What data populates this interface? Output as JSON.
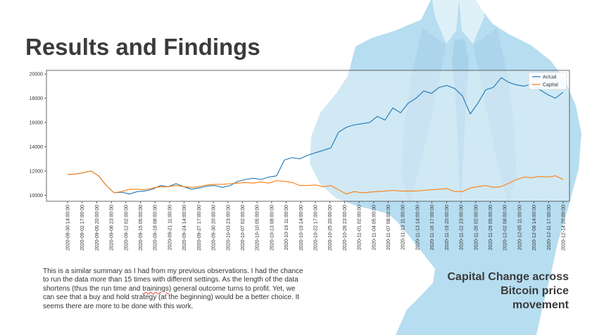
{
  "slide": {
    "title": "Results and Findings",
    "body_text": {
      "before": "This is a similar summary as I had from my previous observations. I had the chance to run the data more than 15 times with different settings. As the length of the data shortens (thus the run time and ",
      "marked_word": "trainings",
      "after": ") general outcome turns to profit. Yet, we can see that a buy and hold strategy (at the beginning) would be a better choice. It seems there are more to be done with this work."
    },
    "caption_lines": [
      "Capital Change across",
      "Bitcoin price",
      "movement"
    ]
  },
  "colors": {
    "actual": "#1f77b4",
    "capital": "#ff7f0e",
    "silhouette": "#b7ddf0",
    "silhouette_dark": "#a6d2ea",
    "title": "#3b3b3b"
  },
  "chart_data": {
    "type": "line",
    "title": "",
    "xlabel": "",
    "ylabel": "",
    "ylim": [
      9500,
      20300
    ],
    "y_ticks": [
      10000,
      12000,
      14000,
      16000,
      18000,
      20000
    ],
    "legend_position": "top-right",
    "grid": false,
    "x_tick_labels": [
      "2020-08-30 14:00:00",
      "2020-09-02 17:00:00",
      "2020-09-05 20:00:00",
      "2020-09-08 23:00:00",
      "2020-09-12 02:00:00",
      "2020-09-15 05:00:00",
      "2020-09-18 08:00:00",
      "2020-09-21 11:00:00",
      "2020-09-24 14:00:00",
      "2020-09-27 17:00:00",
      "2020-09-30 20:00:00",
      "2020-10-03 23:00:00",
      "2020-10-07 02:00:00",
      "2020-10-10 05:00:00",
      "2020-10-13 08:00:00",
      "2020-10-16 11:00:00",
      "2020-10-19 14:00:00",
      "2020-10-22 17:00:00",
      "2020-10-25 20:00:00",
      "2020-10-28 23:00:00",
      "2020-11-01 02:00:00",
      "2020-11-04 05:00:00",
      "2020-11-07 08:00:00",
      "2020-11-10 11:00:00",
      "2020-11-13 14:00:00",
      "2020-11-16 17:00:00",
      "2020-11-19 20:00:00",
      "2020-11-22 23:00:00",
      "2020-11-26 02:00:00",
      "2020-11-29 05:00:00",
      "2020-12-02 08:00:00",
      "2020-12-05 11:00:00",
      "2020-12-08 14:00:00",
      "2020-12-11 17:00:00",
      "2020-12-14 20:00:00"
    ],
    "series": [
      {
        "name": "Actual",
        "color": "#1f77b4",
        "values": [
          11700,
          11750,
          11850,
          12000,
          11600,
          10800,
          10200,
          10250,
          10100,
          10300,
          10350,
          10500,
          10800,
          10700,
          10950,
          10700,
          10500,
          10600,
          10750,
          10800,
          10650,
          10800,
          11150,
          11300,
          11400,
          11300,
          11500,
          11600,
          12900,
          13100,
          13000,
          13300,
          13500,
          13700,
          13900,
          15200,
          15600,
          15800,
          15900,
          16000,
          16500,
          16200,
          17200,
          16800,
          17600,
          18000,
          18600,
          18400,
          18900,
          19050,
          18800,
          18200,
          16700,
          17600,
          18700,
          18900,
          19700,
          19300,
          19100,
          19000,
          19200,
          18700,
          18300,
          18000,
          18500
        ]
      },
      {
        "name": "Capital",
        "color": "#ff7f0e",
        "values": [
          11700,
          11750,
          11850,
          12000,
          11600,
          10800,
          10200,
          10300,
          10500,
          10500,
          10450,
          10600,
          10700,
          10700,
          10800,
          10700,
          10650,
          10700,
          10850,
          10900,
          10900,
          10950,
          11000,
          11050,
          11000,
          11100,
          11000,
          11200,
          11150,
          11050,
          10800,
          10800,
          10850,
          10700,
          10800,
          10450,
          10100,
          10300,
          10200,
          10250,
          10300,
          10350,
          10400,
          10350,
          10350,
          10350,
          10400,
          10450,
          10500,
          10550,
          10300,
          10300,
          10600,
          10700,
          10800,
          10650,
          10700,
          11000,
          11300,
          11500,
          11450,
          11550,
          11500,
          11600,
          11300
        ]
      }
    ]
  }
}
